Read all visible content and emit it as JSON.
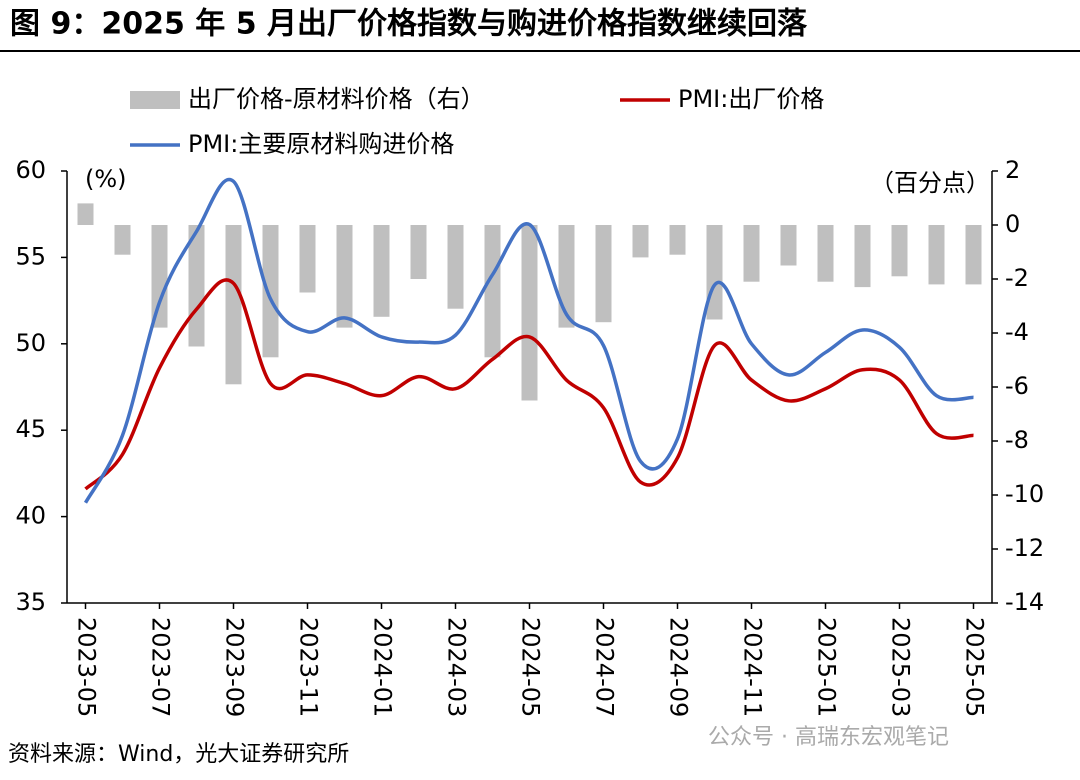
{
  "chart_data": {
    "type": "combo",
    "title": "图 9：2025 年 5 月出厂价格指数与购进价格指数继续回落",
    "y_unit": "(%)",
    "y2_unit": "（百分点）",
    "source": "资料来源：Wind，光大证券研究所",
    "watermark": "公众号 · 高瑞东宏观笔记",
    "categories": [
      "2023-05",
      null,
      "2023-07",
      null,
      "2023-09",
      null,
      "2023-11",
      null,
      "2024-01",
      null,
      "2024-03",
      null,
      "2024-05",
      null,
      "2024-07",
      null,
      "2024-09",
      null,
      "2024-11",
      null,
      "2025-01",
      null,
      "2025-03",
      null,
      "2025-05"
    ],
    "ylim": [
      35,
      60
    ],
    "yticks": [
      35,
      40,
      45,
      50,
      55,
      60
    ],
    "y2lim": [
      -14,
      2
    ],
    "y2ticks": [
      -14,
      -12,
      -10,
      -8,
      -6,
      -4,
      -2,
      0,
      2
    ],
    "series": [
      {
        "name": "出厂价格-原材料价格（右）",
        "type": "bar",
        "axis": "y2",
        "color": "#bfbfbf",
        "values": [
          0.8,
          -1.1,
          -3.8,
          -4.5,
          -5.9,
          -4.9,
          -2.5,
          -3.8,
          -3.4,
          -2.0,
          -3.1,
          -4.9,
          -6.5,
          -3.8,
          -3.6,
          -1.2,
          -1.1,
          -3.5,
          -2.1,
          -1.5,
          -2.1,
          -2.3,
          -1.9,
          -2.2,
          -2.2
        ]
      },
      {
        "name": "PMI:出厂价格",
        "type": "line",
        "color": "#c00000",
        "values": [
          41.6,
          43.6,
          48.6,
          52.0,
          53.5,
          47.7,
          48.2,
          47.7,
          47.0,
          48.1,
          47.4,
          49.1,
          50.4,
          47.9,
          46.3,
          42.0,
          43.4,
          49.9,
          47.9,
          46.7,
          47.4,
          48.5,
          47.9,
          44.8,
          44.7
        ]
      },
      {
        "name": "PMI:主要原材料购进价格",
        "type": "line",
        "color": "#4472c4",
        "values": [
          40.8,
          44.7,
          52.4,
          56.5,
          59.4,
          52.6,
          50.7,
          51.5,
          50.4,
          50.1,
          50.5,
          54.0,
          56.9,
          51.7,
          49.9,
          43.2,
          44.5,
          53.4,
          50.0,
          48.2,
          49.5,
          50.8,
          49.8,
          47.0,
          46.9
        ]
      }
    ]
  }
}
